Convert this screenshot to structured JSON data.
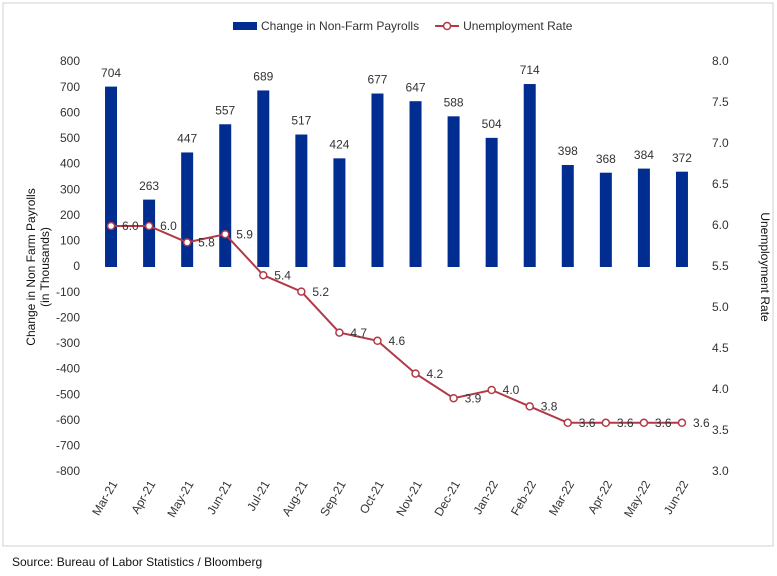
{
  "chart_data": {
    "type": "combo",
    "categories": [
      "Mar-21",
      "Apr-21",
      "May-21",
      "Jun-21",
      "Jul-21",
      "Aug-21",
      "Sep-21",
      "Oct-21",
      "Nov-21",
      "Dec-21",
      "Jan-22",
      "Feb-22",
      "Mar-22",
      "Apr-22",
      "May-22",
      "Jun-22"
    ],
    "series": [
      {
        "name": "Change in Non-Farm Payrolls",
        "type": "bar",
        "color": "#002d8f",
        "values": [
          704,
          263,
          447,
          557,
          689,
          517,
          424,
          677,
          647,
          588,
          504,
          714,
          398,
          368,
          384,
          372
        ]
      },
      {
        "name": "Unemployment Rate",
        "type": "line",
        "axis": "y2",
        "color": "#b03a48",
        "values": [
          6.0,
          6.0,
          5.8,
          5.9,
          5.4,
          5.2,
          4.7,
          4.6,
          4.2,
          3.9,
          4.0,
          3.8,
          3.6,
          3.6,
          3.6,
          3.6
        ],
        "value_labels": [
          "6.0",
          "6.0",
          "5.8",
          "5.9",
          "5.4",
          "5.2",
          "4.7",
          "4.6",
          "4.2",
          "3.9",
          "4.0",
          "3.8",
          "3.6",
          "3.6",
          "3.6",
          "3.6"
        ]
      }
    ],
    "ylabel": [
      "Change in Non Farm Payrolls",
      "(in Thousands)"
    ],
    "y2label": "Unemployment Rate",
    "ylim": [
      -800,
      800
    ],
    "yticks": [
      -800,
      -700,
      -600,
      -500,
      -400,
      -300,
      -200,
      -100,
      0,
      100,
      200,
      300,
      400,
      500,
      600,
      700,
      800
    ],
    "y2lim": [
      3,
      8
    ],
    "y2ticks": [
      {
        "value": 3,
        "label": "3.0"
      },
      {
        "value": 3.5,
        "label": "3.5"
      },
      {
        "value": 4,
        "label": "4.0"
      },
      {
        "value": 4.5,
        "label": "4.5"
      },
      {
        "value": 5,
        "label": "5.0"
      },
      {
        "value": 5.5,
        "label": "5.5"
      },
      {
        "value": 6,
        "label": "6.0"
      },
      {
        "value": 6.5,
        "label": "6.5"
      },
      {
        "value": 7,
        "label": "7.0"
      },
      {
        "value": 7.5,
        "label": "7.5"
      },
      {
        "value": 8,
        "label": "8.0"
      }
    ],
    "legend": "top",
    "source": "Source: Bureau of Labor Statistics / Bloomberg"
  }
}
